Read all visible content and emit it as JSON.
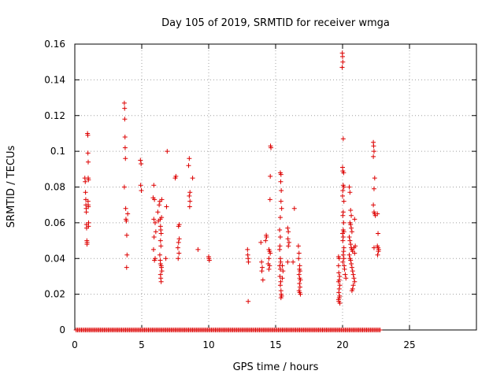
{
  "chart_data": {
    "type": "scatter",
    "title": "Day 105 of 2019, SRMTID for receiver wmga",
    "xlabel": "GPS time / hours",
    "ylabel": "SRMTID / TECUs",
    "xlim": [
      0,
      30
    ],
    "ylim": [
      0,
      0.16
    ],
    "xticks": [
      0,
      5,
      10,
      15,
      20,
      25
    ],
    "xtick_labels": [
      "0",
      "5",
      "10",
      "15",
      "20",
      "25"
    ],
    "yticks": [
      0,
      0.02,
      0.04,
      0.06,
      0.08,
      0.1,
      0.12,
      0.14,
      0.16
    ],
    "ytick_labels": [
      "0",
      "0.02",
      "0.04",
      "0.06",
      "0.08",
      "0.1",
      "0.12",
      "0.14",
      "0.16"
    ],
    "grid": true,
    "marker": "plus",
    "color": "#dd0000",
    "zero_baseline": {
      "x_start": 0.1,
      "x_end": 22.8,
      "step": 0.1,
      "y": 0
    },
    "series": [
      {
        "name": "SRMTID",
        "points": [
          [
            0.75,
            0.085
          ],
          [
            0.78,
            0.083
          ],
          [
            0.8,
            0.077
          ],
          [
            0.82,
            0.073
          ],
          [
            0.83,
            0.07
          ],
          [
            0.85,
            0.068
          ],
          [
            0.86,
            0.066
          ],
          [
            0.87,
            0.059
          ],
          [
            0.88,
            0.057
          ],
          [
            0.9,
            0.05
          ],
          [
            0.91,
            0.048
          ],
          [
            0.92,
            0.049
          ],
          [
            0.95,
            0.11
          ],
          [
            0.97,
            0.109
          ],
          [
            0.98,
            0.099
          ],
          [
            1.0,
            0.094
          ],
          [
            1.0,
            0.085
          ],
          [
            1.02,
            0.084
          ],
          [
            0.99,
            0.072
          ],
          [
            1.0,
            0.07
          ],
          [
            1.01,
            0.069
          ],
          [
            1.03,
            0.06
          ],
          [
            1.02,
            0.058
          ],
          [
            3.7,
            0.127
          ],
          [
            3.72,
            0.124
          ],
          [
            3.73,
            0.118
          ],
          [
            3.75,
            0.108
          ],
          [
            3.76,
            0.102
          ],
          [
            3.78,
            0.096
          ],
          [
            3.7,
            0.08
          ],
          [
            3.8,
            0.068
          ],
          [
            3.82,
            0.062
          ],
          [
            3.85,
            0.061
          ],
          [
            3.88,
            0.053
          ],
          [
            3.95,
            0.065
          ],
          [
            3.9,
            0.042
          ],
          [
            3.87,
            0.035
          ],
          [
            4.9,
            0.095
          ],
          [
            4.95,
            0.093
          ],
          [
            4.92,
            0.081
          ],
          [
            4.97,
            0.078
          ],
          [
            5.9,
            0.081
          ],
          [
            5.85,
            0.074
          ],
          [
            5.95,
            0.073
          ],
          [
            5.9,
            0.062
          ],
          [
            6.0,
            0.06
          ],
          [
            5.92,
            0.052
          ],
          [
            6.05,
            0.055
          ],
          [
            5.88,
            0.045
          ],
          [
            6.0,
            0.04
          ],
          [
            5.95,
            0.039
          ],
          [
            6.2,
            0.066
          ],
          [
            6.25,
            0.061
          ],
          [
            6.3,
            0.07
          ],
          [
            6.35,
            0.072
          ],
          [
            6.38,
            0.062
          ],
          [
            6.4,
            0.058
          ],
          [
            6.42,
            0.056
          ],
          [
            6.45,
            0.054
          ],
          [
            6.4,
            0.05
          ],
          [
            6.43,
            0.047
          ],
          [
            6.35,
            0.042
          ],
          [
            6.38,
            0.039
          ],
          [
            6.4,
            0.037
          ],
          [
            6.45,
            0.036
          ],
          [
            6.47,
            0.035
          ],
          [
            6.5,
            0.033
          ],
          [
            6.4,
            0.031
          ],
          [
            6.42,
            0.029
          ],
          [
            6.45,
            0.027
          ],
          [
            6.48,
            0.063
          ],
          [
            6.5,
            0.073
          ],
          [
            6.9,
            0.1
          ],
          [
            6.85,
            0.069
          ],
          [
            6.8,
            0.04
          ],
          [
            7.55,
            0.086
          ],
          [
            7.5,
            0.085
          ],
          [
            7.8,
            0.059
          ],
          [
            7.75,
            0.058
          ],
          [
            7.8,
            0.051
          ],
          [
            7.75,
            0.049
          ],
          [
            7.7,
            0.046
          ],
          [
            7.78,
            0.043
          ],
          [
            7.72,
            0.04
          ],
          [
            8.55,
            0.096
          ],
          [
            8.5,
            0.092
          ],
          [
            8.6,
            0.077
          ],
          [
            8.55,
            0.075
          ],
          [
            8.6,
            0.072
          ],
          [
            8.58,
            0.069
          ],
          [
            8.8,
            0.085
          ],
          [
            9.2,
            0.045
          ],
          [
            10.0,
            0.041
          ],
          [
            10.02,
            0.04
          ],
          [
            10.05,
            0.039
          ],
          [
            12.9,
            0.045
          ],
          [
            12.92,
            0.042
          ],
          [
            12.95,
            0.04
          ],
          [
            12.97,
            0.038
          ],
          [
            12.95,
            0.016
          ],
          [
            13.9,
            0.049
          ],
          [
            13.95,
            0.038
          ],
          [
            14.0,
            0.035
          ],
          [
            13.97,
            0.033
          ],
          [
            14.05,
            0.028
          ],
          [
            14.3,
            0.053
          ],
          [
            14.32,
            0.052
          ],
          [
            14.25,
            0.05
          ],
          [
            14.5,
            0.045
          ],
          [
            14.55,
            0.044
          ],
          [
            14.6,
            0.043
          ],
          [
            14.5,
            0.04
          ],
          [
            14.45,
            0.037
          ],
          [
            14.55,
            0.036
          ],
          [
            14.5,
            0.034
          ],
          [
            14.62,
            0.103
          ],
          [
            14.65,
            0.102
          ],
          [
            14.6,
            0.086
          ],
          [
            14.58,
            0.073
          ],
          [
            15.35,
            0.088
          ],
          [
            15.4,
            0.087
          ],
          [
            15.38,
            0.083
          ],
          [
            15.42,
            0.078
          ],
          [
            15.4,
            0.072
          ],
          [
            15.45,
            0.068
          ],
          [
            15.35,
            0.063
          ],
          [
            15.3,
            0.056
          ],
          [
            15.35,
            0.052
          ],
          [
            15.32,
            0.047
          ],
          [
            15.3,
            0.045
          ],
          [
            15.35,
            0.04
          ],
          [
            15.38,
            0.038
          ],
          [
            15.3,
            0.036
          ],
          [
            15.35,
            0.034
          ],
          [
            15.32,
            0.03
          ],
          [
            15.38,
            0.027
          ],
          [
            15.35,
            0.025
          ],
          [
            15.4,
            0.022
          ],
          [
            15.42,
            0.02
          ],
          [
            15.45,
            0.019
          ],
          [
            15.4,
            0.018
          ],
          [
            15.5,
            0.036
          ],
          [
            15.55,
            0.033
          ],
          [
            15.5,
            0.029
          ],
          [
            15.9,
            0.057
          ],
          [
            15.95,
            0.055
          ],
          [
            15.92,
            0.051
          ],
          [
            16.0,
            0.049
          ],
          [
            15.95,
            0.047
          ],
          [
            15.9,
            0.038
          ],
          [
            16.4,
            0.068
          ],
          [
            16.3,
            0.038
          ],
          [
            16.7,
            0.047
          ],
          [
            16.75,
            0.043
          ],
          [
            16.72,
            0.04
          ],
          [
            16.8,
            0.036
          ],
          [
            16.78,
            0.034
          ],
          [
            16.82,
            0.033
          ],
          [
            16.75,
            0.031
          ],
          [
            16.8,
            0.029
          ],
          [
            16.85,
            0.028
          ],
          [
            16.78,
            0.026
          ],
          [
            16.82,
            0.024
          ],
          [
            16.75,
            0.022
          ],
          [
            16.8,
            0.021
          ],
          [
            16.85,
            0.02
          ],
          [
            19.7,
            0.041
          ],
          [
            19.75,
            0.04
          ],
          [
            19.7,
            0.036
          ],
          [
            19.72,
            0.032
          ],
          [
            19.78,
            0.03
          ],
          [
            19.75,
            0.028
          ],
          [
            19.7,
            0.027
          ],
          [
            19.8,
            0.025
          ],
          [
            19.75,
            0.023
          ],
          [
            19.72,
            0.021
          ],
          [
            19.78,
            0.019
          ],
          [
            19.75,
            0.018
          ],
          [
            19.7,
            0.017
          ],
          [
            19.72,
            0.016
          ],
          [
            19.8,
            0.015
          ],
          [
            19.98,
            0.155
          ],
          [
            20.0,
            0.153
          ],
          [
            20.02,
            0.15
          ],
          [
            19.97,
            0.147
          ],
          [
            20.05,
            0.107
          ],
          [
            20.0,
            0.091
          ],
          [
            20.02,
            0.089
          ],
          [
            20.08,
            0.088
          ],
          [
            20.05,
            0.081
          ],
          [
            20.1,
            0.08
          ],
          [
            20.02,
            0.078
          ],
          [
            20.0,
            0.075
          ],
          [
            20.1,
            0.072
          ],
          [
            20.05,
            0.066
          ],
          [
            20.02,
            0.064
          ],
          [
            20.08,
            0.06
          ],
          [
            20.05,
            0.056
          ],
          [
            20.1,
            0.055
          ],
          [
            20.0,
            0.054
          ],
          [
            20.05,
            0.052
          ],
          [
            20.02,
            0.05
          ],
          [
            20.1,
            0.046
          ],
          [
            20.08,
            0.044
          ],
          [
            20.05,
            0.042
          ],
          [
            20.1,
            0.04
          ],
          [
            20.02,
            0.038
          ],
          [
            20.12,
            0.036
          ],
          [
            20.15,
            0.034
          ],
          [
            20.2,
            0.031
          ],
          [
            20.25,
            0.029
          ],
          [
            20.5,
            0.08
          ],
          [
            20.55,
            0.077
          ],
          [
            20.6,
            0.067
          ],
          [
            20.65,
            0.064
          ],
          [
            20.55,
            0.06
          ],
          [
            20.6,
            0.059
          ],
          [
            20.65,
            0.057
          ],
          [
            20.7,
            0.055
          ],
          [
            20.5,
            0.052
          ],
          [
            20.55,
            0.05
          ],
          [
            20.6,
            0.048
          ],
          [
            20.65,
            0.046
          ],
          [
            20.7,
            0.045
          ],
          [
            20.75,
            0.044
          ],
          [
            20.5,
            0.042
          ],
          [
            20.55,
            0.04
          ],
          [
            20.6,
            0.039
          ],
          [
            20.65,
            0.037
          ],
          [
            20.7,
            0.035
          ],
          [
            20.75,
            0.033
          ],
          [
            20.8,
            0.031
          ],
          [
            20.85,
            0.029
          ],
          [
            20.9,
            0.027
          ],
          [
            20.8,
            0.025
          ],
          [
            20.75,
            0.023
          ],
          [
            20.7,
            0.022
          ],
          [
            20.85,
            0.046
          ],
          [
            20.9,
            0.062
          ],
          [
            20.95,
            0.047
          ],
          [
            20.9,
            0.043
          ],
          [
            22.3,
            0.105
          ],
          [
            22.32,
            0.103
          ],
          [
            22.35,
            0.1
          ],
          [
            22.3,
            0.097
          ],
          [
            22.4,
            0.085
          ],
          [
            22.35,
            0.079
          ],
          [
            22.3,
            0.07
          ],
          [
            22.35,
            0.066
          ],
          [
            22.4,
            0.065
          ],
          [
            22.45,
            0.064
          ],
          [
            22.6,
            0.065
          ],
          [
            22.65,
            0.054
          ],
          [
            22.6,
            0.047
          ],
          [
            22.65,
            0.046
          ],
          [
            22.7,
            0.045
          ],
          [
            22.68,
            0.044
          ],
          [
            22.62,
            0.042
          ],
          [
            22.35,
            0.046
          ]
        ]
      }
    ]
  }
}
